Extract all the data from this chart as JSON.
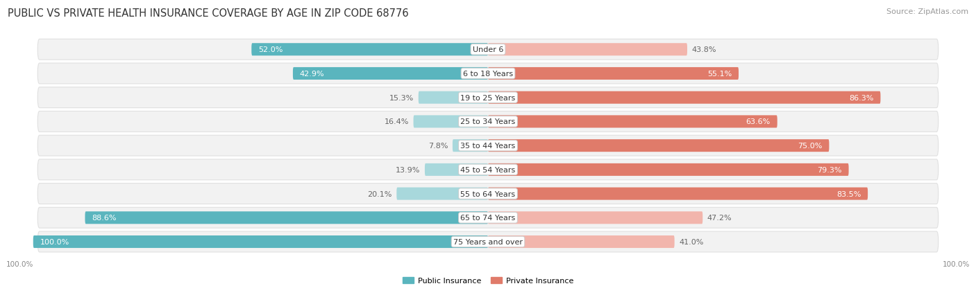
{
  "title": "PUBLIC VS PRIVATE HEALTH INSURANCE COVERAGE BY AGE IN ZIP CODE 68776",
  "source": "Source: ZipAtlas.com",
  "categories": [
    "Under 6",
    "6 to 18 Years",
    "19 to 25 Years",
    "25 to 34 Years",
    "35 to 44 Years",
    "45 to 54 Years",
    "55 to 64 Years",
    "65 to 74 Years",
    "75 Years and over"
  ],
  "public_values": [
    52.0,
    42.9,
    15.3,
    16.4,
    7.8,
    13.9,
    20.1,
    88.6,
    100.0
  ],
  "private_values": [
    43.8,
    55.1,
    86.3,
    63.6,
    75.0,
    79.3,
    83.5,
    47.2,
    41.0
  ],
  "public_color": "#5AB5BE",
  "private_color": "#E07B6A",
  "public_color_light": "#A8D8DC",
  "private_color_light": "#F2B5AC",
  "label_color_inside": "#FFFFFF",
  "label_color_outside": "#666666",
  "background_color": "#FFFFFF",
  "row_bg": "#F2F2F2",
  "row_border": "#E0E0E0",
  "bar_height": 0.52,
  "title_fontsize": 10.5,
  "source_fontsize": 8,
  "label_fontsize": 8,
  "axis_label_fontsize": 7.5,
  "legend_fontsize": 8
}
